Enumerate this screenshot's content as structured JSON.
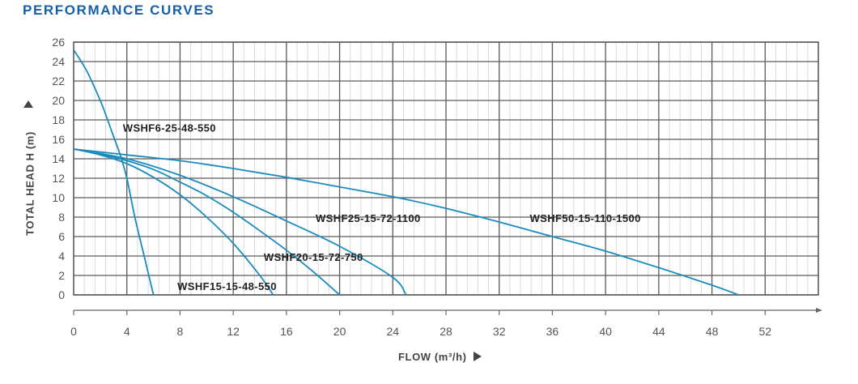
{
  "header": {
    "title": "PERFORMANCE CURVES"
  },
  "axes": {
    "y_label": "TOTAL HEAD H (m)",
    "x_label": "FLOW (m³/h)"
  },
  "colors": {
    "title": "#1560a8",
    "curve": "#1a8bbf",
    "major_grid": "#5a5a5a",
    "minor_grid": "#dcdcdc",
    "axis_text": "#555555"
  },
  "chart_data": {
    "type": "line",
    "title": "PERFORMANCE CURVES",
    "xlabel": "FLOW (m³/h)",
    "ylabel": "TOTAL HEAD H (m)",
    "xlim": [
      0,
      56
    ],
    "ylim": [
      0,
      26
    ],
    "x_ticks": [
      0,
      4,
      8,
      12,
      16,
      20,
      24,
      28,
      32,
      36,
      40,
      44,
      48,
      52
    ],
    "y_ticks": [
      0,
      2,
      4,
      6,
      8,
      10,
      12,
      14,
      16,
      18,
      20,
      22,
      24,
      26
    ],
    "grid": true,
    "minor_x_step": 0.8,
    "series": [
      {
        "name": "WSHF6-25-48-550",
        "label_pos": [
          3.7,
          16.8
        ],
        "x": [
          0,
          1,
          2,
          2.5,
          3,
          3.5,
          4,
          4.6,
          5.3,
          6
        ],
        "y": [
          25.2,
          23.0,
          20.0,
          18.2,
          16.3,
          14.4,
          12.0,
          8.0,
          4.0,
          0
        ]
      },
      {
        "name": "WSHF15-15-48-550",
        "label_pos": [
          7.8,
          0.5
        ],
        "x": [
          0,
          2,
          4,
          6,
          8,
          10,
          12,
          14,
          15
        ],
        "y": [
          15,
          14.4,
          13.5,
          12.1,
          10.3,
          8.0,
          5.3,
          2.0,
          0
        ]
      },
      {
        "name": "WSHF20-15-72-750",
        "label_pos": [
          14.3,
          3.5
        ],
        "x": [
          0,
          2,
          4,
          6,
          8,
          10,
          12,
          14,
          16,
          18,
          20
        ],
        "y": [
          15,
          14.5,
          13.8,
          12.9,
          11.6,
          10.2,
          8.5,
          6.6,
          4.6,
          2.4,
          0
        ]
      },
      {
        "name": "WSHF25-15-72-1100",
        "label_pos": [
          18.2,
          7.5
        ],
        "x": [
          0,
          4,
          8,
          12,
          16,
          20,
          24,
          25
        ],
        "y": [
          15,
          14.0,
          12.3,
          10.1,
          7.6,
          5.0,
          1.8,
          0
        ]
      },
      {
        "name": "WSHF50-15-110-1500",
        "label_pos": [
          34.3,
          7.5
        ],
        "x": [
          0,
          4,
          8,
          12,
          16,
          20,
          24,
          28,
          32,
          36,
          40,
          44,
          48,
          50
        ],
        "y": [
          15,
          14.4,
          13.8,
          13.0,
          12.1,
          11.1,
          10.1,
          8.9,
          7.5,
          6.0,
          4.5,
          2.8,
          1.0,
          0
        ]
      }
    ]
  }
}
